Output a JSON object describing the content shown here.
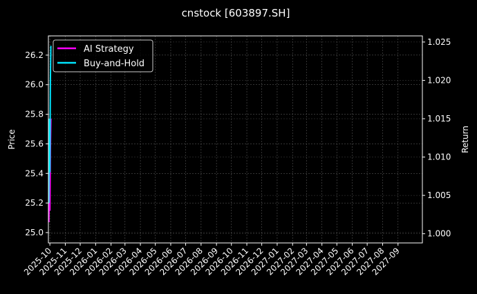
{
  "chart_data": {
    "type": "line",
    "title": "cnstock [603897.SH]",
    "ylabel_left": "Price",
    "ylabel_right": "Return",
    "x_ticks": [
      "2025-10",
      "2025-11",
      "2025-12",
      "2026-01",
      "2026-02",
      "2026-03",
      "2026-04",
      "2026-05",
      "2026-06",
      "2026-07",
      "2026-08",
      "2026-09",
      "2026-10",
      "2026-11",
      "2026-12",
      "2027-01",
      "2027-02",
      "2027-03",
      "2027-04",
      "2027-05",
      "2027-06",
      "2027-07",
      "2027-08",
      "2027-09"
    ],
    "xlim": [
      "2025-09-28",
      "2027-10-20"
    ],
    "y_left_ticks": [
      25.0,
      25.2,
      25.4,
      25.6,
      25.8,
      26.0,
      26.2
    ],
    "y_left_lim": [
      24.93,
      26.33
    ],
    "y_right_ticks": [
      1.0,
      1.005,
      1.01,
      1.015,
      1.02,
      1.025
    ],
    "y_right_lim": [
      0.9988,
      1.0258
    ],
    "grid": true,
    "legend_position": "top-left",
    "series": [
      {
        "name": "AI Strategy",
        "color": "#ff00ff",
        "axis": "right",
        "x": [
          "2025-09-29",
          "2025-09-30",
          "2025-10-01",
          "2025-10-02",
          "2025-10-03"
        ],
        "values": [
          1.0015,
          1.006,
          1.003,
          1.011,
          1.015
        ]
      },
      {
        "name": "Buy-and-Hold",
        "color": "#00e5ff",
        "axis": "right",
        "x": [
          "2025-09-29",
          "2025-09-30",
          "2025-10-01",
          "2025-10-02",
          "2025-10-03"
        ],
        "values": [
          1.004,
          1.015,
          1.008,
          1.02,
          1.0245
        ]
      }
    ]
  }
}
